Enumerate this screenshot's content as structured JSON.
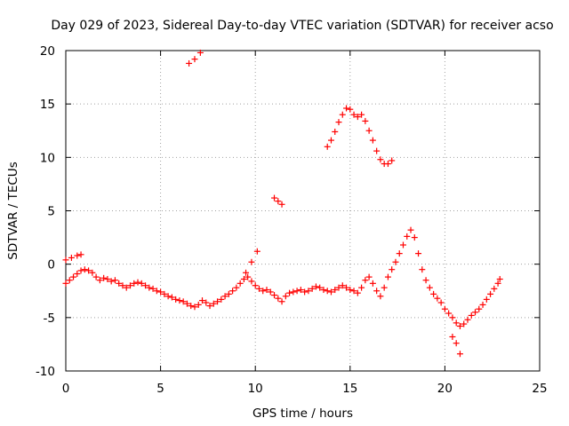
{
  "chart_data": {
    "type": "scatter",
    "title": "Day 029 of 2023, Sidereal Day-to-day VTEC variation (SDTVAR) for receiver acso",
    "xlabel": "GPS time / hours",
    "ylabel": "SDTVAR / TECUs",
    "xlim": [
      0,
      25
    ],
    "ylim": [
      -10,
      20
    ],
    "xticks": [
      "0",
      "5",
      "10",
      "15",
      "20",
      "25"
    ],
    "yticks": [
      "-10",
      "-5",
      "0",
      "5",
      "10",
      "15",
      "20"
    ],
    "grid": true,
    "marker": "+",
    "color": "#ff0000",
    "series": [
      {
        "name": "SDTVAR",
        "points": [
          [
            0.0,
            -1.8
          ],
          [
            0.2,
            -1.5
          ],
          [
            0.4,
            -1.2
          ],
          [
            0.6,
            -0.9
          ],
          [
            0.8,
            -0.6
          ],
          [
            1.0,
            -0.5
          ],
          [
            1.2,
            -0.6
          ],
          [
            1.4,
            -0.8
          ],
          [
            1.6,
            -1.2
          ],
          [
            1.8,
            -1.5
          ],
          [
            2.0,
            -1.3
          ],
          [
            2.2,
            -1.4
          ],
          [
            2.4,
            -1.6
          ],
          [
            2.6,
            -1.5
          ],
          [
            2.8,
            -1.8
          ],
          [
            3.0,
            -2.0
          ],
          [
            3.2,
            -2.2
          ],
          [
            3.4,
            -2.0
          ],
          [
            3.6,
            -1.8
          ],
          [
            3.8,
            -1.7
          ],
          [
            4.0,
            -1.8
          ],
          [
            4.2,
            -2.0
          ],
          [
            4.4,
            -2.2
          ],
          [
            4.6,
            -2.3
          ],
          [
            4.8,
            -2.5
          ],
          [
            5.0,
            -2.6
          ],
          [
            5.2,
            -2.8
          ],
          [
            5.4,
            -3.0
          ],
          [
            5.6,
            -3.1
          ],
          [
            5.8,
            -3.3
          ],
          [
            6.0,
            -3.4
          ],
          [
            6.2,
            -3.5
          ],
          [
            6.4,
            -3.7
          ],
          [
            6.6,
            -3.9
          ],
          [
            6.8,
            -4.0
          ],
          [
            7.0,
            -3.8
          ],
          [
            7.2,
            -3.4
          ],
          [
            7.4,
            -3.6
          ],
          [
            7.6,
            -3.9
          ],
          [
            7.8,
            -3.7
          ],
          [
            8.0,
            -3.5
          ],
          [
            8.2,
            -3.3
          ],
          [
            8.4,
            -3.0
          ],
          [
            8.6,
            -2.8
          ],
          [
            8.8,
            -2.5
          ],
          [
            9.0,
            -2.2
          ],
          [
            9.2,
            -1.8
          ],
          [
            9.4,
            -1.4
          ],
          [
            9.6,
            -1.2
          ],
          [
            9.8,
            -1.6
          ],
          [
            10.0,
            -2.0
          ],
          [
            10.2,
            -2.3
          ],
          [
            10.4,
            -2.5
          ],
          [
            10.6,
            -2.4
          ],
          [
            10.8,
            -2.6
          ],
          [
            11.0,
            -2.9
          ],
          [
            11.2,
            -3.2
          ],
          [
            11.4,
            -3.5
          ],
          [
            11.6,
            -3.0
          ],
          [
            11.8,
            -2.7
          ],
          [
            12.0,
            -2.6
          ],
          [
            12.2,
            -2.5
          ],
          [
            12.4,
            -2.4
          ],
          [
            12.6,
            -2.6
          ],
          [
            12.8,
            -2.5
          ],
          [
            13.0,
            -2.3
          ],
          [
            13.2,
            -2.1
          ],
          [
            13.4,
            -2.2
          ],
          [
            13.6,
            -2.4
          ],
          [
            13.8,
            -2.5
          ],
          [
            14.0,
            -2.6
          ],
          [
            14.2,
            -2.4
          ],
          [
            14.4,
            -2.2
          ],
          [
            14.6,
            -2.0
          ],
          [
            14.8,
            -2.2
          ],
          [
            15.0,
            -2.4
          ],
          [
            15.2,
            -2.5
          ],
          [
            15.4,
            -2.7
          ],
          [
            15.6,
            -2.2
          ],
          [
            15.8,
            -1.5
          ],
          [
            16.0,
            -1.2
          ],
          [
            16.2,
            -1.8
          ],
          [
            16.4,
            -2.5
          ],
          [
            16.6,
            -3.0
          ],
          [
            16.8,
            -2.2
          ],
          [
            17.0,
            -1.2
          ],
          [
            17.2,
            -0.5
          ],
          [
            17.4,
            0.2
          ],
          [
            17.6,
            1.0
          ],
          [
            17.8,
            1.8
          ],
          [
            18.0,
            2.6
          ],
          [
            18.2,
            3.2
          ],
          [
            18.4,
            2.5
          ],
          [
            18.6,
            1.0
          ],
          [
            18.8,
            -0.5
          ],
          [
            19.0,
            -1.5
          ],
          [
            19.2,
            -2.2
          ],
          [
            19.4,
            -2.8
          ],
          [
            19.6,
            -3.2
          ],
          [
            19.8,
            -3.6
          ],
          [
            20.0,
            -4.2
          ],
          [
            20.2,
            -4.6
          ],
          [
            20.4,
            -5.0
          ],
          [
            20.6,
            -5.5
          ],
          [
            20.8,
            -5.8
          ],
          [
            21.0,
            -5.6
          ],
          [
            21.2,
            -5.2
          ],
          [
            21.4,
            -4.8
          ],
          [
            21.6,
            -4.5
          ],
          [
            21.8,
            -4.2
          ],
          [
            22.0,
            -3.8
          ],
          [
            22.2,
            -3.3
          ],
          [
            22.4,
            -2.8
          ],
          [
            22.6,
            -2.3
          ],
          [
            22.8,
            -1.8
          ],
          [
            22.9,
            -1.4
          ],
          [
            0.0,
            0.4
          ],
          [
            0.3,
            0.6
          ],
          [
            0.6,
            0.8
          ],
          [
            0.8,
            0.9
          ],
          [
            6.5,
            18.8
          ],
          [
            6.8,
            19.2
          ],
          [
            7.1,
            19.8
          ],
          [
            9.5,
            -0.8
          ],
          [
            9.8,
            0.2
          ],
          [
            10.1,
            1.2
          ],
          [
            11.0,
            6.2
          ],
          [
            11.2,
            5.9
          ],
          [
            11.4,
            5.6
          ],
          [
            13.8,
            11.0
          ],
          [
            14.0,
            11.6
          ],
          [
            14.2,
            12.4
          ],
          [
            14.4,
            13.3
          ],
          [
            14.6,
            14.0
          ],
          [
            14.8,
            14.6
          ],
          [
            15.0,
            14.5
          ],
          [
            15.2,
            14.0
          ],
          [
            15.4,
            13.8
          ],
          [
            15.6,
            14.0
          ],
          [
            15.8,
            13.4
          ],
          [
            16.0,
            12.5
          ],
          [
            16.2,
            11.6
          ],
          [
            16.4,
            10.6
          ],
          [
            16.6,
            9.8
          ],
          [
            16.8,
            9.4
          ],
          [
            17.0,
            9.4
          ],
          [
            17.2,
            9.7
          ],
          [
            20.4,
            -6.8
          ],
          [
            20.6,
            -7.4
          ],
          [
            20.8,
            -8.4
          ]
        ]
      }
    ]
  }
}
